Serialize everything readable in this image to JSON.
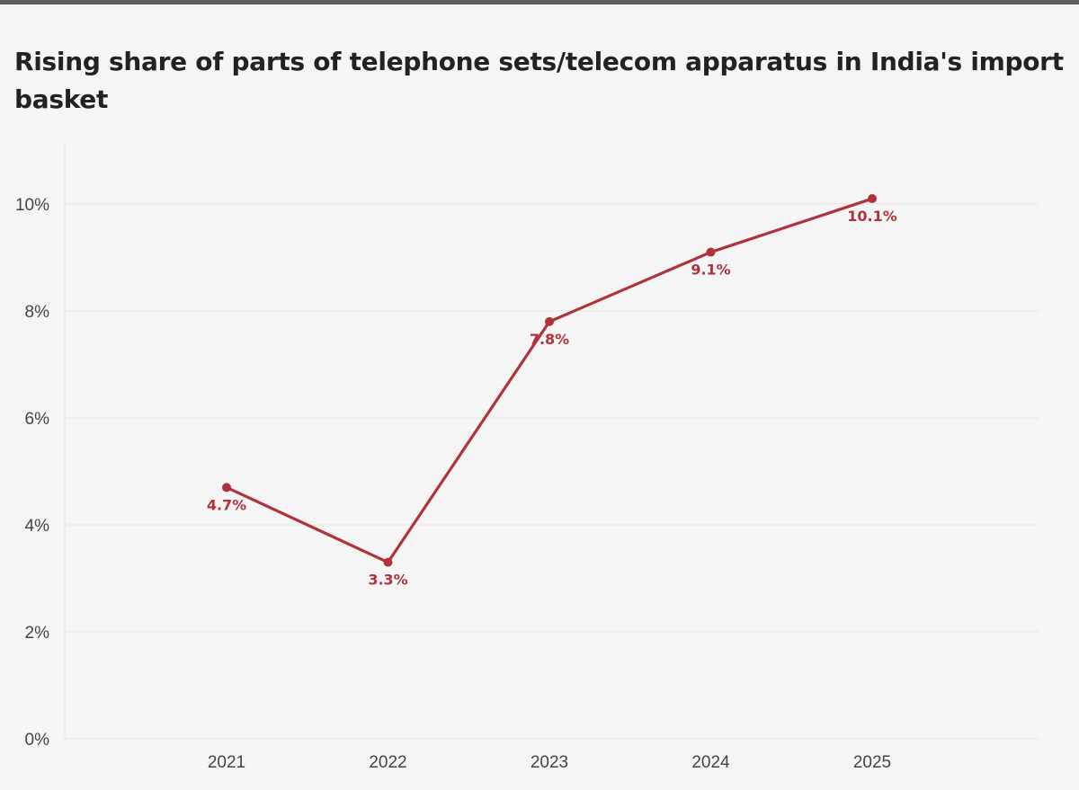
{
  "colors": {
    "line": "#b0323b",
    "grid": "#e8e8e8",
    "background": "#f5f5f5"
  },
  "chart_data": {
    "type": "line",
    "title": "Rising share of parts of telephone sets/telecom apparatus in India's import basket",
    "xlabel": "",
    "ylabel": "",
    "categories": [
      "2021",
      "2022",
      "2023",
      "2024",
      "2025"
    ],
    "series": [
      {
        "values": [
          4.7,
          3.3,
          7.8,
          9.1,
          10.1
        ],
        "labels": [
          "4.7%",
          "3.3%",
          "7.8%",
          "9.1%",
          "10.1%"
        ]
      }
    ],
    "y_ticks": [
      {
        "value": 0,
        "label": "0%"
      },
      {
        "value": 2,
        "label": "2%"
      },
      {
        "value": 4,
        "label": "4%"
      },
      {
        "value": 6,
        "label": "6%"
      },
      {
        "value": 8,
        "label": "8%"
      },
      {
        "value": 10,
        "label": "10%"
      }
    ],
    "ylim": [
      0,
      11
    ],
    "grid": true,
    "legend": "none"
  }
}
